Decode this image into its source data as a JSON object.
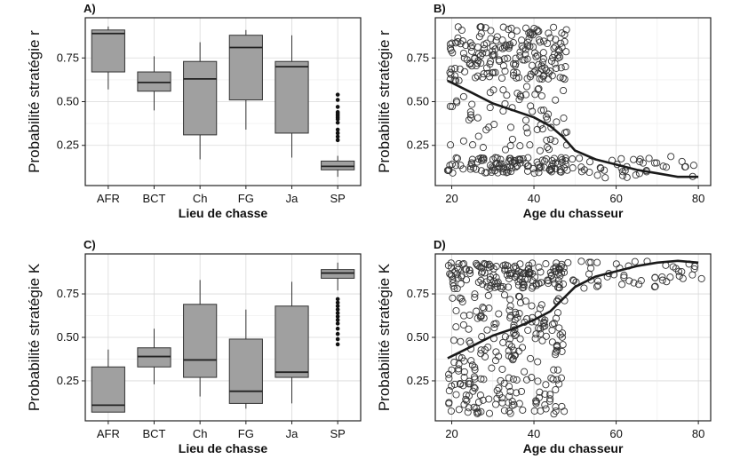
{
  "chart_data": [
    {
      "panel": "A)",
      "type": "box",
      "xlabel": "Lieu de chasse",
      "ylabel": "Probabilité stratégie r",
      "categories": [
        "AFR",
        "BCT",
        "Ch",
        "FG",
        "Ja",
        "SP"
      ],
      "ylim": [
        0.02,
        0.98
      ],
      "yticks": [
        0.25,
        0.5,
        0.75
      ],
      "grid": true,
      "boxes": [
        {
          "whisker_low": 0.57,
          "q1": 0.67,
          "median": 0.89,
          "q3": 0.91,
          "whisker_high": 0.93,
          "outliers": []
        },
        {
          "whisker_low": 0.45,
          "q1": 0.56,
          "median": 0.61,
          "q3": 0.67,
          "whisker_high": 0.76,
          "outliers": []
        },
        {
          "whisker_low": 0.17,
          "q1": 0.31,
          "median": 0.63,
          "q3": 0.73,
          "whisker_high": 0.84,
          "outliers": []
        },
        {
          "whisker_low": 0.34,
          "q1": 0.51,
          "median": 0.81,
          "q3": 0.88,
          "whisker_high": 0.91,
          "outliers": []
        },
        {
          "whisker_low": 0.18,
          "q1": 0.32,
          "median": 0.7,
          "q3": 0.73,
          "whisker_high": 0.88,
          "outliers": []
        },
        {
          "whisker_low": 0.07,
          "q1": 0.11,
          "median": 0.13,
          "q3": 0.16,
          "whisker_high": 0.19,
          "outliers": [
            0.28,
            0.3,
            0.32,
            0.34,
            0.38,
            0.4,
            0.41,
            0.42,
            0.43,
            0.44,
            0.47,
            0.51,
            0.54
          ]
        }
      ]
    },
    {
      "panel": "B)",
      "type": "scatter",
      "xlabel": "Age du chasseur",
      "ylabel": "Probabilité stratégie r",
      "xlim": [
        16,
        83
      ],
      "ylim": [
        0.02,
        0.98
      ],
      "xticks": [
        20,
        40,
        60,
        80
      ],
      "yticks": [
        0.25,
        0.5,
        0.75
      ],
      "grid": true,
      "seed": 11,
      "clusters": [
        {
          "x_min": 19,
          "x_max": 48,
          "y_min": 0.62,
          "y_max": 0.93,
          "count": 190
        },
        {
          "x_min": 19,
          "x_max": 48,
          "y_min": 0.09,
          "y_max": 0.18,
          "count": 110
        },
        {
          "x_min": 19,
          "x_max": 48,
          "y_min": 0.2,
          "y_max": 0.6,
          "count": 70
        },
        {
          "x_min": 48,
          "x_max": 81,
          "y_min": 0.06,
          "y_max": 0.19,
          "count": 42
        }
      ],
      "trend": {
        "x": [
          19,
          25,
          30,
          35,
          40,
          44,
          47,
          50,
          55,
          60,
          65,
          70,
          75,
          80
        ],
        "y": [
          0.62,
          0.55,
          0.49,
          0.45,
          0.41,
          0.36,
          0.3,
          0.22,
          0.17,
          0.14,
          0.11,
          0.09,
          0.07,
          0.07
        ]
      }
    },
    {
      "panel": "C)",
      "type": "box",
      "xlabel": "Lieu de chasse",
      "ylabel": "Probabilité stratégie K",
      "categories": [
        "AFR",
        "BCT",
        "Ch",
        "FG",
        "Ja",
        "SP"
      ],
      "ylim": [
        0.02,
        0.98
      ],
      "yticks": [
        0.25,
        0.5,
        0.75
      ],
      "grid": true,
      "boxes": [
        {
          "whisker_low": 0.07,
          "q1": 0.07,
          "median": 0.11,
          "q3": 0.33,
          "whisker_high": 0.43,
          "outliers": []
        },
        {
          "whisker_low": 0.23,
          "q1": 0.33,
          "median": 0.39,
          "q3": 0.44,
          "whisker_high": 0.55,
          "outliers": []
        },
        {
          "whisker_low": 0.16,
          "q1": 0.27,
          "median": 0.37,
          "q3": 0.69,
          "whisker_high": 0.83,
          "outliers": []
        },
        {
          "whisker_low": 0.09,
          "q1": 0.12,
          "median": 0.19,
          "q3": 0.49,
          "whisker_high": 0.66,
          "outliers": []
        },
        {
          "whisker_low": 0.12,
          "q1": 0.27,
          "median": 0.3,
          "q3": 0.68,
          "whisker_high": 0.82,
          "outliers": []
        },
        {
          "whisker_low": 0.77,
          "q1": 0.84,
          "median": 0.87,
          "q3": 0.89,
          "whisker_high": 0.93,
          "outliers": [
            0.46,
            0.49,
            0.52,
            0.55,
            0.58,
            0.6,
            0.62,
            0.64,
            0.66,
            0.68,
            0.7,
            0.72
          ]
        }
      ]
    },
    {
      "panel": "D)",
      "type": "scatter",
      "xlabel": "Age du chasseur",
      "ylabel": "Probabilité stratégie K",
      "xlim": [
        16,
        83
      ],
      "ylim": [
        0.02,
        0.98
      ],
      "xticks": [
        20,
        40,
        60,
        80
      ],
      "yticks": [
        0.25,
        0.5,
        0.75
      ],
      "grid": true,
      "seed": 29,
      "clusters": [
        {
          "x_min": 19,
          "x_max": 48,
          "y_min": 0.78,
          "y_max": 0.93,
          "count": 150
        },
        {
          "x_min": 19,
          "x_max": 48,
          "y_min": 0.06,
          "y_max": 0.75,
          "count": 240
        },
        {
          "x_min": 48,
          "x_max": 81,
          "y_min": 0.78,
          "y_max": 0.94,
          "count": 50
        }
      ],
      "trend": {
        "x": [
          19,
          25,
          30,
          35,
          40,
          44,
          47,
          50,
          55,
          60,
          65,
          70,
          75,
          80
        ],
        "y": [
          0.38,
          0.45,
          0.51,
          0.55,
          0.6,
          0.65,
          0.72,
          0.79,
          0.85,
          0.88,
          0.91,
          0.93,
          0.94,
          0.93
        ]
      }
    }
  ]
}
